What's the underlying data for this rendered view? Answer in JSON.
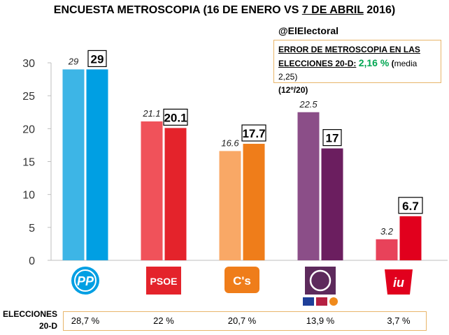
{
  "title": {
    "prefix": "ENCUESTA METROSCOPIA (16 DE ENERO VS ",
    "underlined": "7 DE ABRIL",
    "suffix": " 2016)"
  },
  "handle": "@ElElectoral",
  "error_box": {
    "line1": "ERROR DE METROSCOPIA EN LAS",
    "line2_label": "ELECCIONES 20-D:",
    "value": "2,16 %",
    "media_prefix": "(",
    "media": "media 2,25)",
    "rank": "(12º/20)",
    "value_color": "#00a651"
  },
  "elections_20d": {
    "label_line1": "ELECCIONES",
    "label_line2": "20-D",
    "values": [
      "28,7 %",
      "22 %",
      "20,7 %",
      "13,9 %",
      "3,7 %"
    ]
  },
  "chart_data": {
    "type": "bar",
    "categories": [
      "PP",
      "PSOE",
      "C's",
      "Podemos",
      "IU"
    ],
    "logo_text": [
      "PP",
      "PSOE",
      "C's",
      "",
      "iu"
    ],
    "series": [
      {
        "values": [
          29,
          21.1,
          16.6,
          22.5,
          3.2
        ],
        "labels": [
          "29",
          "21.1",
          "16.6",
          "22.5",
          "3.2"
        ],
        "colors": [
          "#3db5e6",
          "#f0525a",
          "#f9a866",
          "#8b4e88",
          "#e8425a"
        ]
      },
      {
        "values": [
          29,
          20.1,
          17.7,
          17,
          6.7
        ],
        "labels": [
          "29",
          "20.1",
          "17.7",
          "17",
          "6.7"
        ],
        "colors": [
          "#009fe3",
          "#e4232b",
          "#ef7d1a",
          "#6b1e5f",
          "#e1001d"
        ]
      }
    ],
    "ylim": [
      0,
      30
    ],
    "yticks": [
      0,
      5,
      10,
      15,
      20,
      25,
      30
    ],
    "grid": false,
    "logo_colors": [
      "#009fe3",
      "#e4232b",
      "#ef7d1a",
      "#5d2a5c",
      "#e1001d"
    ]
  }
}
